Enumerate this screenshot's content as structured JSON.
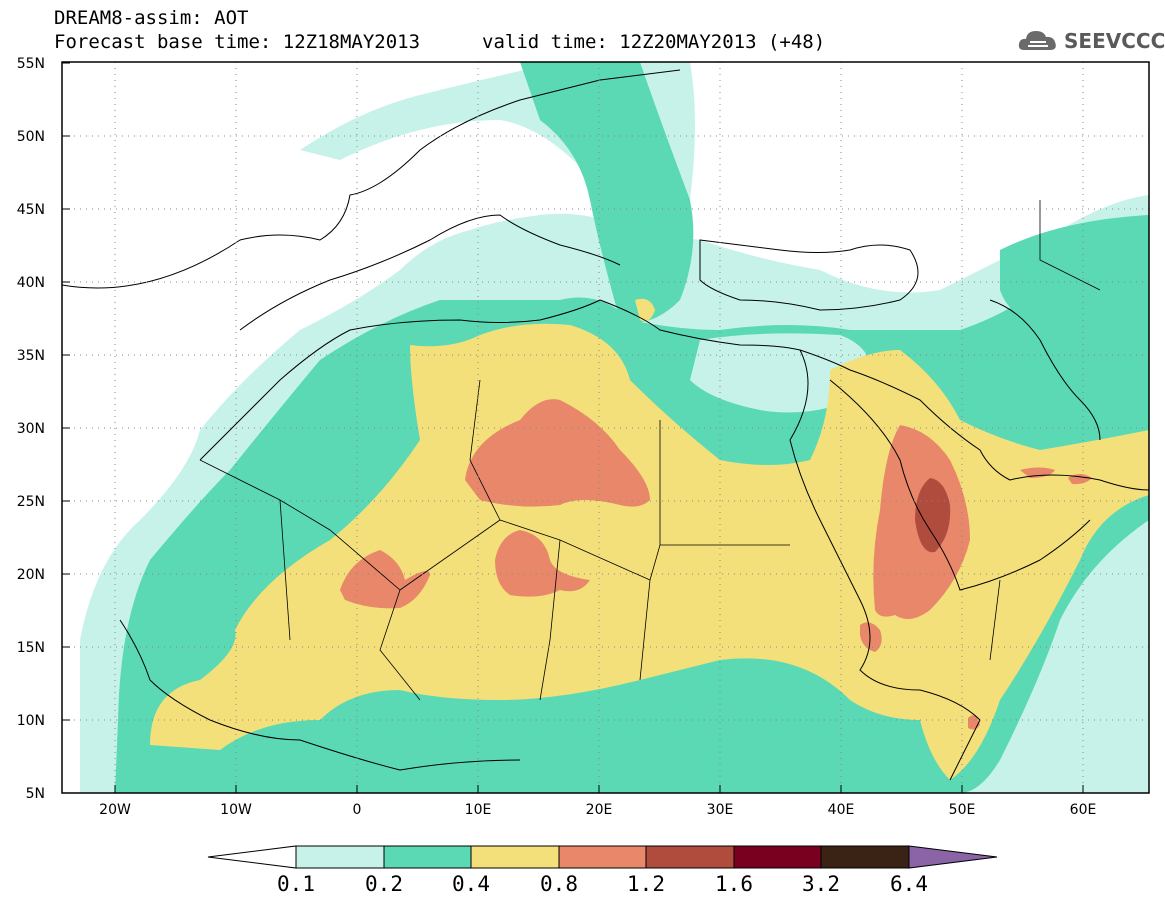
{
  "header": {
    "line1": "DREAM8-assim: AOT",
    "line2": "Forecast base time: 12Z18MAY2013",
    "valid": "valid time: 12Z20MAY2013 (+48)"
  },
  "logo": {
    "text": "SEEVCCC",
    "icon": "cloud-icon"
  },
  "axes": {
    "lat_labels": [
      "55N",
      "50N",
      "45N",
      "40N",
      "35N",
      "30N",
      "25N",
      "20N",
      "15N",
      "10N",
      "5N"
    ],
    "lon_labels": [
      "20W",
      "10W",
      "0",
      "10E",
      "20E",
      "30E",
      "40E",
      "50E",
      "60E"
    ],
    "lat_range": [
      5,
      55
    ],
    "lon_range": [
      -25,
      65
    ],
    "grid": "dotted"
  },
  "colorbar": {
    "labels": [
      "0.1",
      "0.2",
      "0.4",
      "0.8",
      "1.2",
      "1.6",
      "3.2",
      "6.4"
    ],
    "colors": [
      "#ffffff",
      "#c6f2ea",
      "#5ad9b4",
      "#f4e07a",
      "#e8876a",
      "#b04c3e",
      "#7a0020",
      "#3a2314",
      "#8b64a8"
    ]
  }
}
